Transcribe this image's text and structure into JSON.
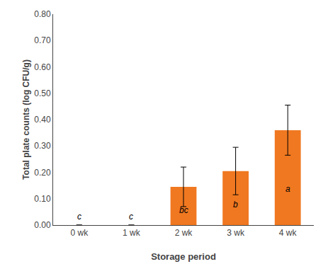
{
  "chart_data": {
    "type": "bar",
    "categories": [
      "0 wk",
      "1 wk",
      "2 wk",
      "3 wk",
      "4 wk"
    ],
    "values": [
      0.0,
      0.0,
      0.145,
      0.205,
      0.36
    ],
    "errors": [
      0.0,
      0.0,
      0.075,
      0.09,
      0.095
    ],
    "color": "#F07820",
    "annotations": [
      "c",
      "c",
      "bc",
      "b",
      "a"
    ],
    "xlabel": "Storage period",
    "ylabel": "Total plate counts (log CFU/g)",
    "ylim": [
      0.0,
      0.8
    ],
    "yticks": [
      {
        "value": 0.0,
        "label": "0.00"
      },
      {
        "value": 0.1,
        "label": "0.10"
      },
      {
        "value": 0.2,
        "label": "0.20"
      },
      {
        "value": 0.3,
        "label": "0.30"
      },
      {
        "value": 0.4,
        "label": "0.40"
      },
      {
        "value": 0.5,
        "label": "0.50"
      },
      {
        "value": 0.6,
        "label": "0.60"
      },
      {
        "value": 0.7,
        "label": "0.70"
      },
      {
        "value": 0.8,
        "label": "0.80"
      }
    ],
    "grid": false
  }
}
